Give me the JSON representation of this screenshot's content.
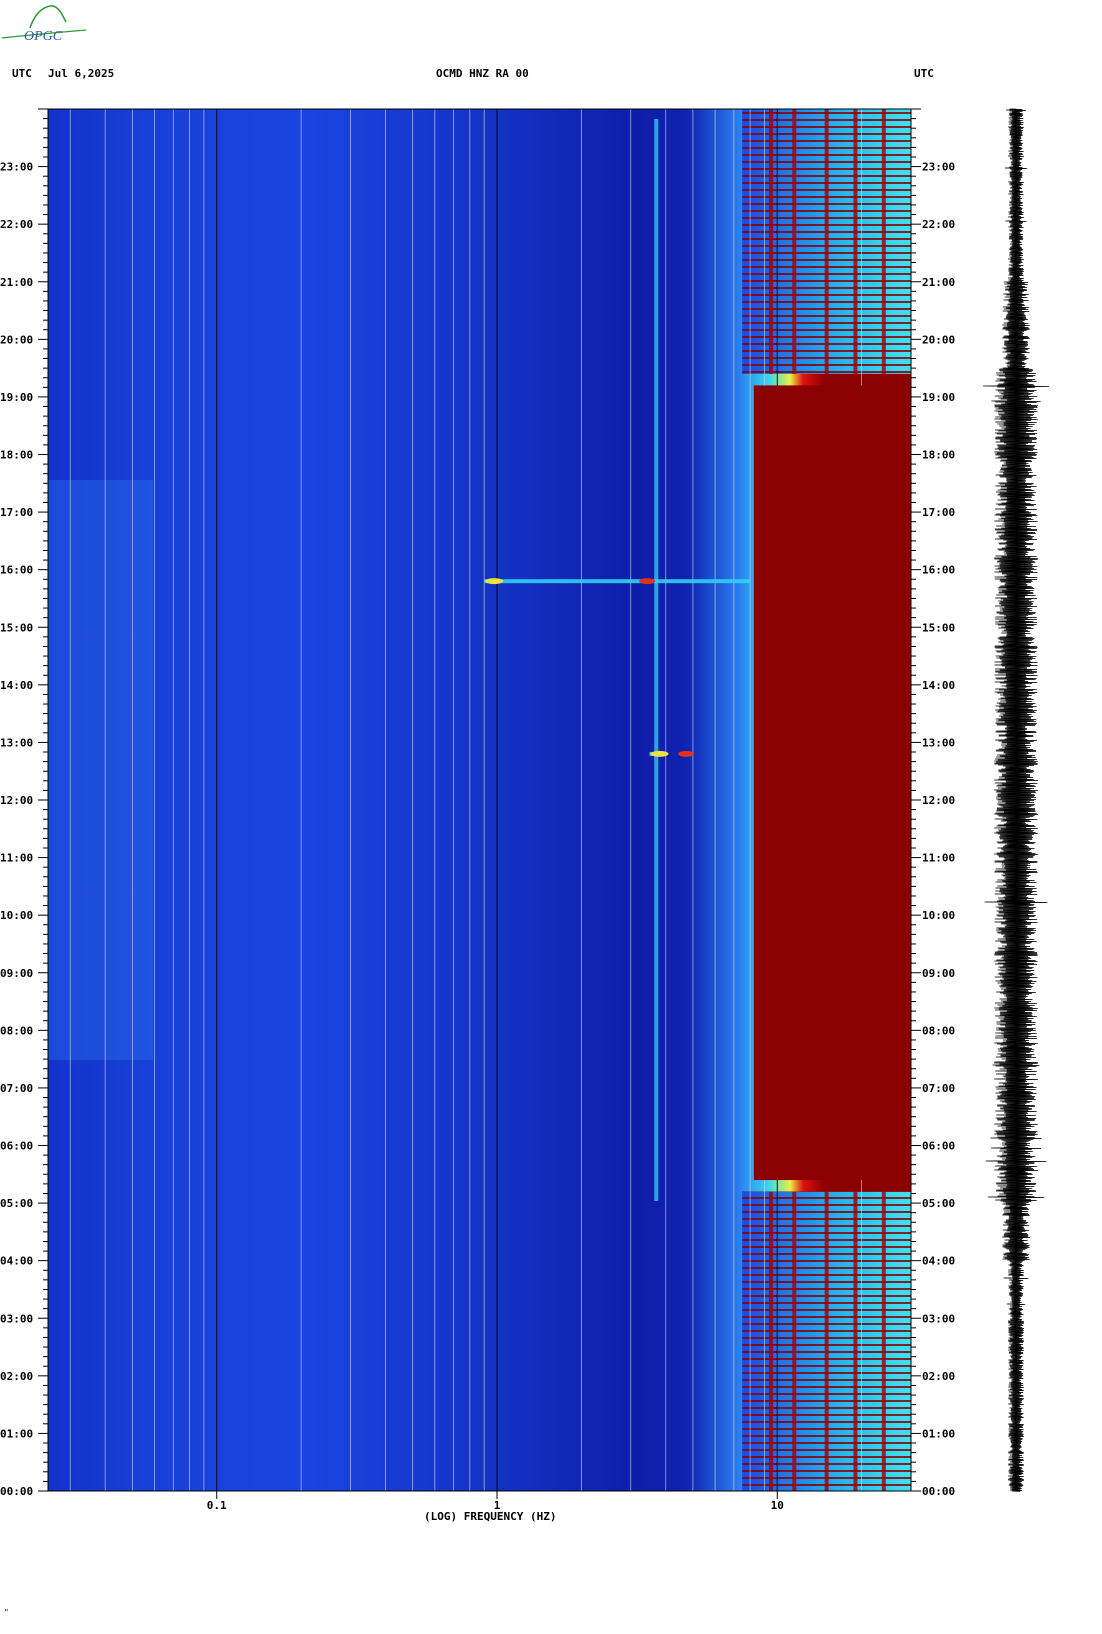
{
  "header": {
    "left_tz": "UTC",
    "date": "Jul 6,2025",
    "station": "OCMD HNZ RA 00",
    "right_tz": "UTC"
  },
  "logo_text": "OPGC",
  "footer_mark": "\"",
  "chart_data": {
    "type": "heatmap",
    "title": "OCMD HNZ RA 00",
    "xlabel": "(LOG) FREQUENCY (HZ)",
    "x_scale": "log",
    "xlim": [
      0.025,
      30
    ],
    "x_ticks": [
      {
        "value": 0.1,
        "label": "0.1"
      },
      {
        "value": 1,
        "label": "1"
      },
      {
        "value": 10,
        "label": "10"
      }
    ],
    "y_unit": "UTC hour",
    "ylim": [
      0,
      24
    ],
    "y_ticks": [
      "00:00",
      "01:00",
      "02:00",
      "03:00",
      "04:00",
      "05:00",
      "06:00",
      "07:00",
      "08:00",
      "09:00",
      "10:00",
      "11:00",
      "12:00",
      "13:00",
      "14:00",
      "15:00",
      "16:00",
      "17:00",
      "18:00",
      "19:00",
      "20:00",
      "21:00",
      "22:00",
      "23:00"
    ],
    "colormap": [
      "#0a10a0",
      "#1a3cd8",
      "#2a8cf0",
      "#30d8f0",
      "#f0f040",
      "#e01010",
      "#8b0000"
    ],
    "features": [
      {
        "kind": "persistent_line",
        "frequency_hz": 3.7
      },
      {
        "kind": "event",
        "time_utc": 15.8,
        "freq_range_hz": [
          0.9,
          8
        ]
      },
      {
        "kind": "event",
        "time_utc": 12.8,
        "freq_range_hz": [
          3.5,
          3.9
        ]
      },
      {
        "kind": "high_noise_band",
        "time_range_utc": [
          5.4,
          19.2
        ],
        "from_hz": 7
      }
    ],
    "seismogram_trace": "amplitude envelope, larger 05:00–19:30"
  }
}
